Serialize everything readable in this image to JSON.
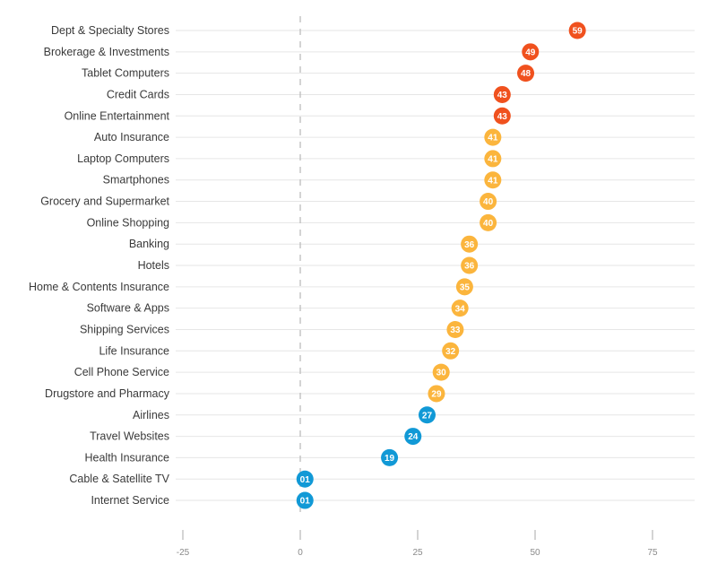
{
  "chart_data": {
    "type": "scatter",
    "categories": [
      "Dept & Specialty Stores",
      "Brokerage & Investments",
      "Tablet Computers",
      "Credit Cards",
      "Online Entertainment",
      "Auto Insurance",
      "Laptop Computers",
      "Smartphones",
      "Grocery and Supermarket",
      "Online Shopping",
      "Banking",
      "Hotels",
      "Home & Contents Insurance",
      "Software & Apps",
      "Shipping Services",
      "Life Insurance",
      "Cell Phone Service",
      "Drugstore and Pharmacy",
      "Airlines",
      "Travel Websites",
      "Health Insurance",
      "Cable & Satellite TV",
      "Internet Service"
    ],
    "values": [
      59,
      49,
      48,
      43,
      43,
      41,
      41,
      41,
      40,
      40,
      36,
      36,
      35,
      34,
      33,
      32,
      30,
      29,
      27,
      24,
      19,
      1,
      1
    ],
    "value_labels": [
      "59",
      "49",
      "48",
      "43",
      "43",
      "41",
      "41",
      "41",
      "40",
      "40",
      "36",
      "36",
      "35",
      "34",
      "33",
      "32",
      "30",
      "29",
      "27",
      "24",
      "19",
      "01",
      "01"
    ],
    "xlim": [
      -25,
      75
    ],
    "xticks": [
      -25,
      0,
      25,
      50,
      75
    ],
    "xtick_labels": [
      "-25",
      "0",
      "25",
      "50",
      "75"
    ],
    "title": "",
    "xlabel": "",
    "ylabel": "",
    "grid": true,
    "zero_line": "dashed",
    "colors": {
      "high": "#f0511e",
      "mid": "#fbb53d",
      "low": "#1199d6",
      "grid": "#e6e6e6",
      "zero_line": "#b8b8b8"
    }
  }
}
